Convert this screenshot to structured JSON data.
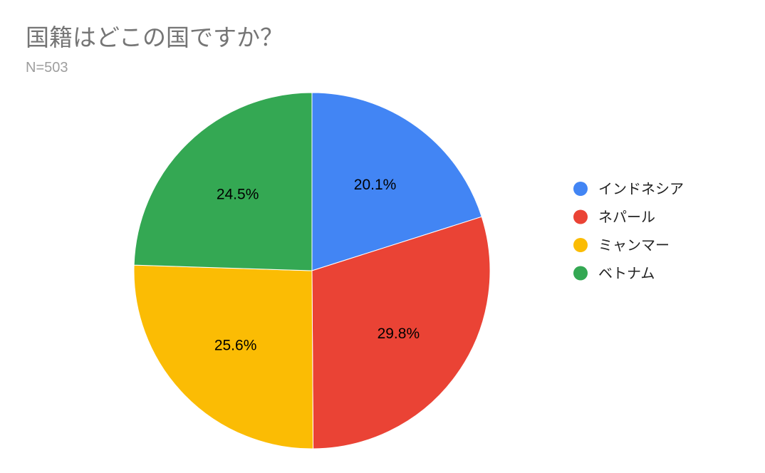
{
  "chart_data": {
    "type": "pie",
    "title": "国籍はどこの国ですか？",
    "subtitle": "N=503",
    "categories": [
      "インドネシア",
      "ネパール",
      "ミャンマー",
      "ベトナム"
    ],
    "values": [
      20.1,
      29.8,
      25.6,
      24.5
    ],
    "data_labels": [
      "20.1%",
      "29.8%",
      "25.6%",
      "24.5%"
    ],
    "colors": [
      "#4285F4",
      "#EA4335",
      "#FBBC04",
      "#34A853"
    ],
    "legend_position": "right"
  }
}
